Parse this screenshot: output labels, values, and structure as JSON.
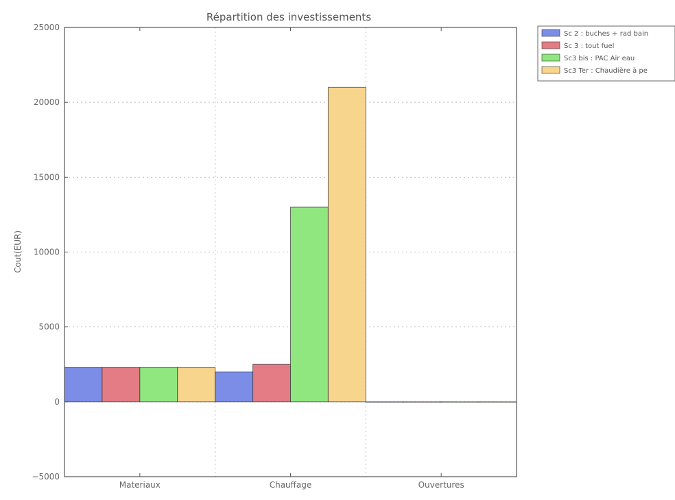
{
  "chart_data": {
    "type": "bar",
    "title": "Répartition des investissements",
    "xlabel": "",
    "ylabel": "Cout(EUR)",
    "ylim": [
      -5000,
      25000
    ],
    "yticks": [
      -5000,
      0,
      5000,
      10000,
      15000,
      20000,
      25000
    ],
    "grid": true,
    "legend_position": "outside upper right",
    "categories": [
      "Materiaux",
      "Chauffage",
      "Ouvertures"
    ],
    "series": [
      {
        "name": "Sc 2 : buches + rad bain",
        "color": "#7b8de6",
        "values": [
          2300,
          2000,
          0
        ]
      },
      {
        "name": "Sc 3 : tout fuel",
        "color": "#e37c85",
        "values": [
          2300,
          2500,
          0
        ]
      },
      {
        "name": "Sc3 bis : PAC Air eau",
        "color": "#90e77f",
        "values": [
          2300,
          13000,
          0
        ]
      },
      {
        "name": "Sc3 Ter : Chaudière à pe",
        "color": "#f8d58c",
        "values": [
          2300,
          21000,
          0
        ]
      }
    ]
  }
}
